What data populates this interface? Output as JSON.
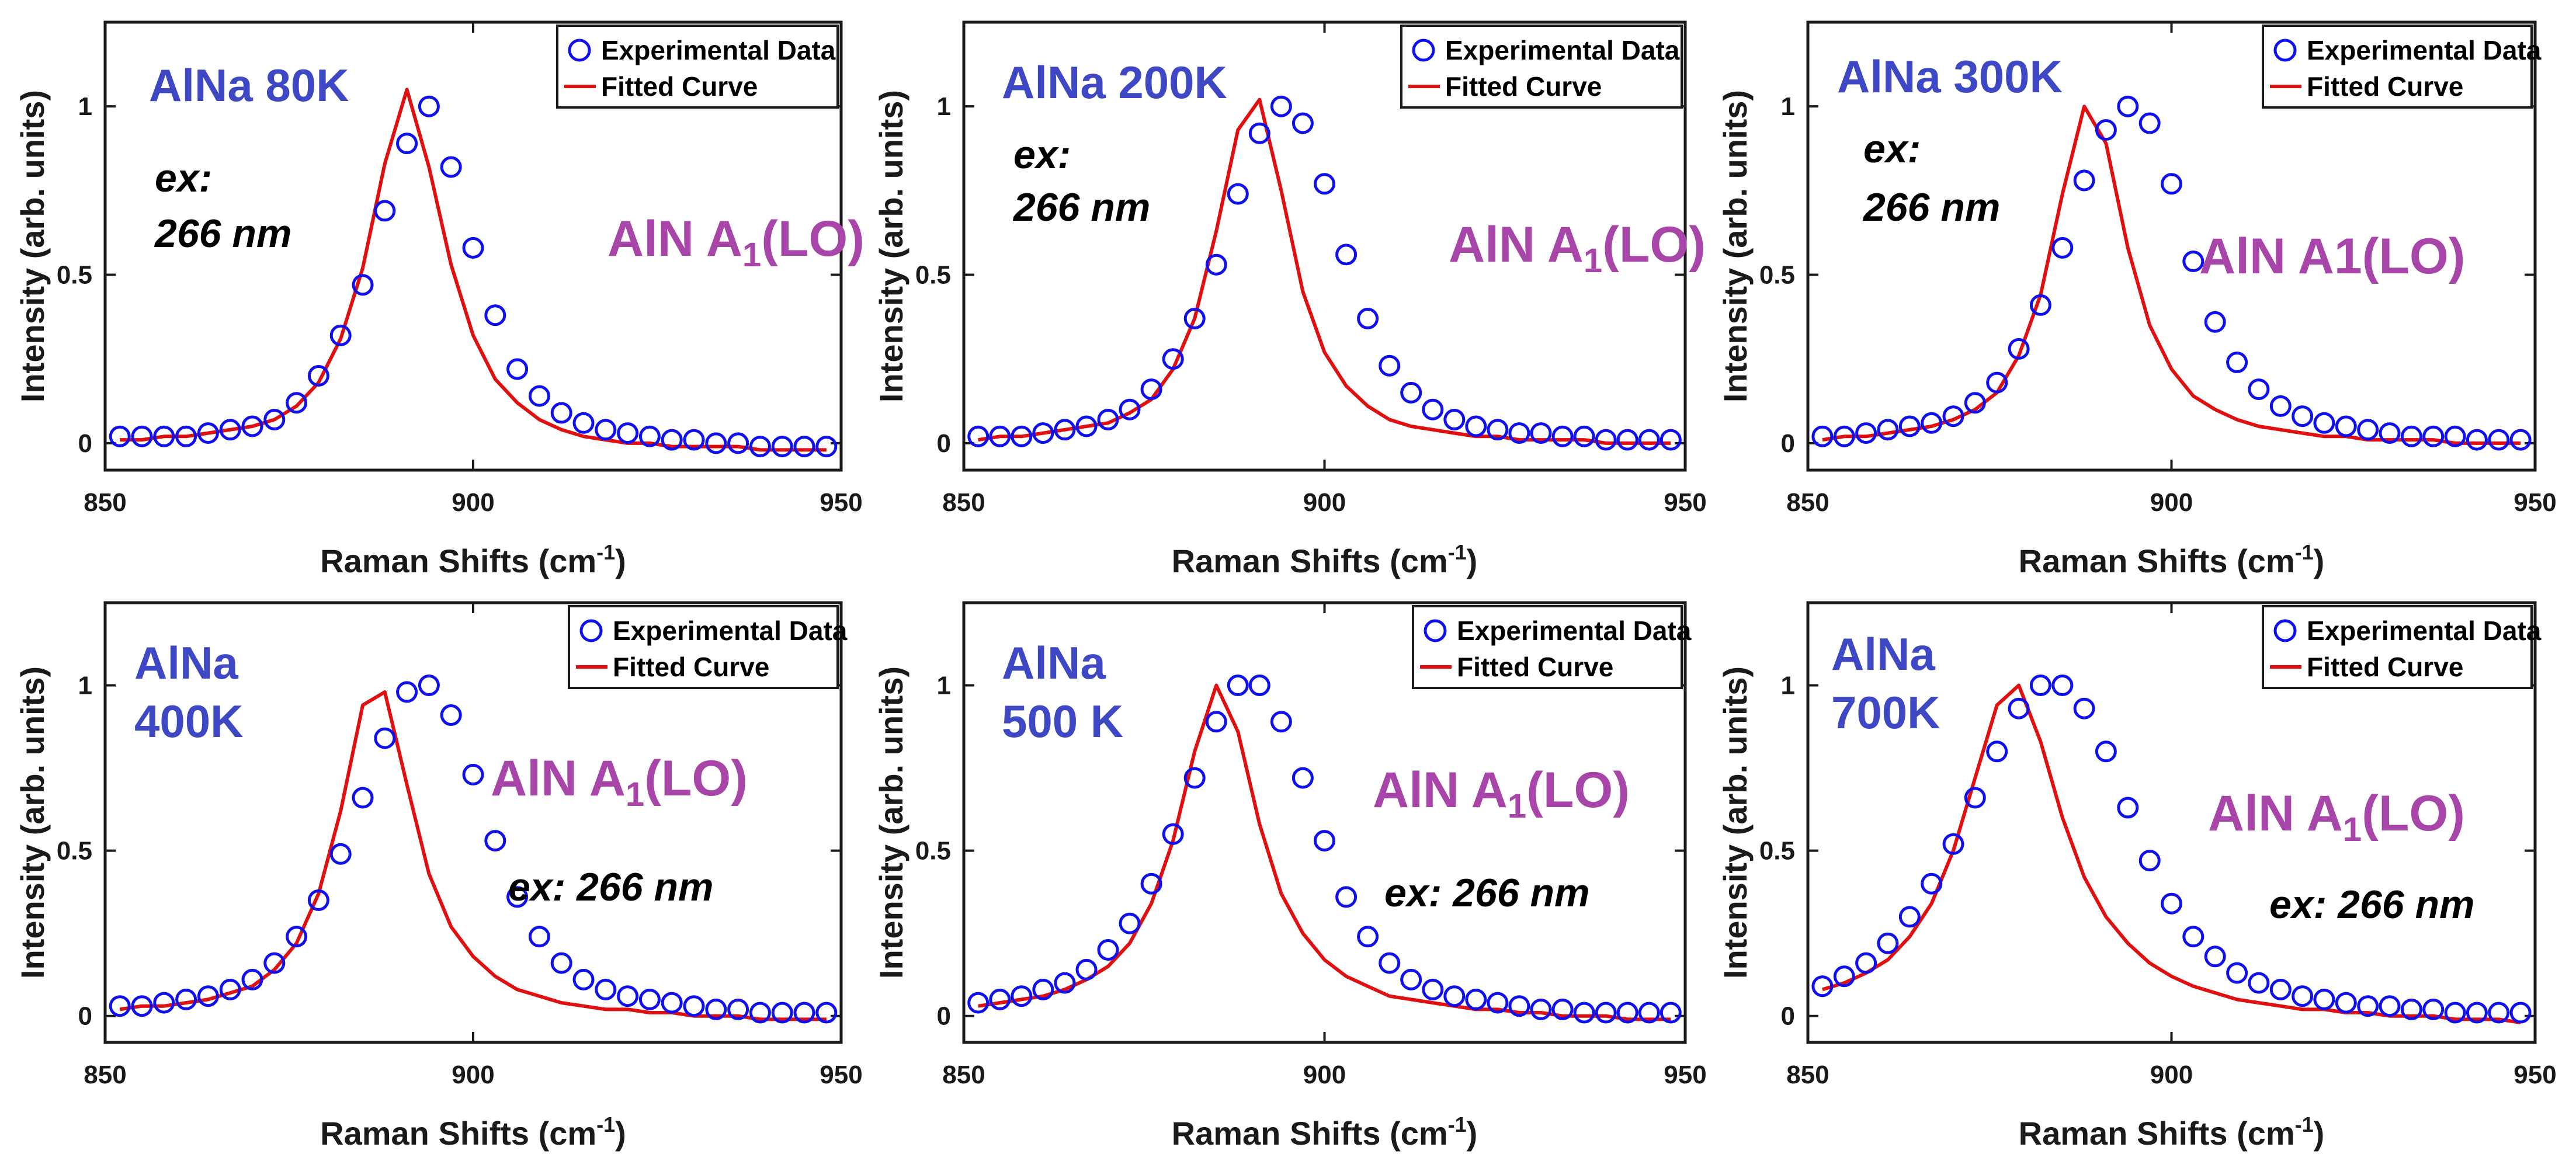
{
  "colors": {
    "marker": "#1010ee",
    "fit": "#e01010",
    "sample_label": "#3f48c4",
    "peak_label": "#a845a8",
    "axis": "#1a1a1a"
  },
  "chart_data": [
    {
      "type": "scatter",
      "sample_lines": [
        "AlNa 80K"
      ],
      "peak_label": {
        "main": "AlN A",
        "sub": "1",
        "tail": "(LO)"
      },
      "excitation_lines": [
        "ex:",
        "266 nm"
      ],
      "legend": [
        "Experimental Data",
        "Fitted Curve"
      ],
      "xlabel": {
        "main": "Raman Shifts (cm",
        "sup": "-1",
        "tail": ")"
      },
      "ylabel": "Intensity (arb. units)",
      "xlim": [
        850,
        950
      ],
      "ylim": [
        -0.08,
        1.25
      ],
      "xticks": [
        850,
        900,
        950
      ],
      "yticks": [
        0,
        0.5,
        1
      ],
      "peak_center": 891.5,
      "peak_gamma": 6.5,
      "x": [
        852,
        855,
        858,
        861,
        864,
        867,
        870,
        873,
        876,
        879,
        882,
        885,
        888,
        891,
        894,
        897,
        900,
        903,
        906,
        909,
        912,
        915,
        918,
        921,
        924,
        927,
        930,
        933,
        936,
        939,
        942,
        945,
        948
      ],
      "y": [
        0.02,
        0.02,
        0.02,
        0.02,
        0.03,
        0.04,
        0.05,
        0.07,
        0.12,
        0.2,
        0.32,
        0.47,
        0.69,
        0.89,
        1.0,
        0.82,
        0.58,
        0.38,
        0.22,
        0.14,
        0.09,
        0.06,
        0.04,
        0.03,
        0.02,
        0.01,
        0.01,
        0.0,
        0.0,
        -0.01,
        -0.01,
        -0.01,
        -0.01
      ],
      "fit_y": [
        0.01,
        0.01,
        0.02,
        0.02,
        0.03,
        0.04,
        0.05,
        0.07,
        0.11,
        0.18,
        0.31,
        0.52,
        0.83,
        1.05,
        0.82,
        0.53,
        0.32,
        0.19,
        0.12,
        0.07,
        0.04,
        0.02,
        0.01,
        0.0,
        0.0,
        -0.01,
        -0.01,
        -0.01,
        -0.01,
        -0.02,
        -0.02,
        -0.02,
        -0.02
      ]
    },
    {
      "type": "scatter",
      "sample_lines": [
        "AlNa 200K"
      ],
      "peak_label": {
        "main": "AlN A",
        "sub": "1",
        "tail": "(LO)"
      },
      "excitation_lines": [
        "ex:",
        "266 nm"
      ],
      "legend": [
        "Experimental Data",
        "Fitted Curve"
      ],
      "xlabel": {
        "main": "Raman Shifts (cm",
        "sup": "-1",
        "tail": ")"
      },
      "ylabel": "Intensity (arb. units)",
      "xlim": [
        850,
        950
      ],
      "ylim": [
        -0.08,
        1.25
      ],
      "xticks": [
        850,
        900,
        950
      ],
      "yticks": [
        0,
        0.5,
        1
      ],
      "peak_center": 891,
      "peak_gamma": 6.0,
      "x": [
        852,
        855,
        858,
        861,
        864,
        867,
        870,
        873,
        876,
        879,
        882,
        885,
        888,
        891,
        894,
        897,
        900,
        903,
        906,
        909,
        912,
        915,
        918,
        921,
        924,
        927,
        930,
        933,
        936,
        939,
        942,
        945,
        948
      ],
      "y": [
        0.02,
        0.02,
        0.02,
        0.03,
        0.04,
        0.05,
        0.07,
        0.1,
        0.16,
        0.25,
        0.37,
        0.53,
        0.74,
        0.92,
        1.0,
        0.95,
        0.77,
        0.56,
        0.37,
        0.23,
        0.15,
        0.1,
        0.07,
        0.05,
        0.04,
        0.03,
        0.03,
        0.02,
        0.02,
        0.01,
        0.01,
        0.01,
        0.01
      ],
      "fit_y": [
        0.01,
        0.02,
        0.02,
        0.03,
        0.04,
        0.05,
        0.06,
        0.09,
        0.13,
        0.22,
        0.37,
        0.63,
        0.93,
        1.02,
        0.75,
        0.45,
        0.27,
        0.17,
        0.11,
        0.07,
        0.05,
        0.04,
        0.03,
        0.02,
        0.02,
        0.01,
        0.01,
        0.01,
        0.01,
        0.0,
        0.0,
        0.0,
        0.0
      ]
    },
    {
      "type": "scatter",
      "sample_lines": [
        "AlNa 300K"
      ],
      "peak_label": {
        "main": "AlN A1(LO)",
        "sub": "",
        "tail": ""
      },
      "excitation_lines": [
        "ex:",
        "266 nm"
      ],
      "legend": [
        "Experimental Data",
        "Fitted Curve"
      ],
      "xlabel": {
        "main": "Raman Shifts (cm",
        "sup": "-1",
        "tail": ")"
      },
      "ylabel": "Intensity (arb. units)",
      "xlim": [
        850,
        950
      ],
      "ylim": [
        -0.08,
        1.25
      ],
      "xticks": [
        850,
        900,
        950
      ],
      "yticks": [
        0,
        0.5,
        1
      ],
      "peak_center": 889,
      "peak_gamma": 7.0,
      "x": [
        852,
        855,
        858,
        861,
        864,
        867,
        870,
        873,
        876,
        879,
        882,
        885,
        888,
        891,
        894,
        897,
        900,
        903,
        906,
        909,
        912,
        915,
        918,
        921,
        924,
        927,
        930,
        933,
        936,
        939,
        942,
        945,
        948
      ],
      "y": [
        0.02,
        0.02,
        0.03,
        0.04,
        0.05,
        0.06,
        0.08,
        0.12,
        0.18,
        0.28,
        0.41,
        0.58,
        0.78,
        0.93,
        1.0,
        0.95,
        0.77,
        0.54,
        0.36,
        0.24,
        0.16,
        0.11,
        0.08,
        0.06,
        0.05,
        0.04,
        0.03,
        0.02,
        0.02,
        0.02,
        0.01,
        0.01,
        0.01
      ],
      "fit_y": [
        0.01,
        0.02,
        0.02,
        0.03,
        0.04,
        0.05,
        0.07,
        0.1,
        0.15,
        0.26,
        0.44,
        0.74,
        1.0,
        0.89,
        0.58,
        0.35,
        0.22,
        0.14,
        0.1,
        0.07,
        0.05,
        0.04,
        0.03,
        0.02,
        0.02,
        0.01,
        0.01,
        0.01,
        0.01,
        0.0,
        0.0,
        0.0,
        0.0
      ]
    },
    {
      "type": "scatter",
      "sample_lines": [
        "AlNa",
        "400K"
      ],
      "peak_label": {
        "main": "AlN A",
        "sub": "1",
        "tail": "(LO)"
      },
      "excitation_lines": [
        "ex: 266 nm"
      ],
      "legend": [
        "Experimental Data",
        "Fitted Curve"
      ],
      "xlabel": {
        "main": "Raman Shifts (cm",
        "sup": "-1",
        "tail": ")"
      },
      "ylabel": "Intensity (arb. units)",
      "xlim": [
        850,
        950
      ],
      "ylim": [
        -0.08,
        1.25
      ],
      "xticks": [
        850,
        900,
        950
      ],
      "yticks": [
        0,
        0.5,
        1
      ],
      "peak_center": 886.5,
      "peak_gamma": 7.5,
      "x": [
        852,
        855,
        858,
        861,
        864,
        867,
        870,
        873,
        876,
        879,
        882,
        885,
        888,
        891,
        894,
        897,
        900,
        903,
        906,
        909,
        912,
        915,
        918,
        921,
        924,
        927,
        930,
        933,
        936,
        939,
        942,
        945,
        948
      ],
      "y": [
        0.03,
        0.03,
        0.04,
        0.05,
        0.06,
        0.08,
        0.11,
        0.16,
        0.24,
        0.35,
        0.49,
        0.66,
        0.84,
        0.98,
        1.0,
        0.91,
        0.73,
        0.53,
        0.36,
        0.24,
        0.16,
        0.11,
        0.08,
        0.06,
        0.05,
        0.04,
        0.03,
        0.02,
        0.02,
        0.01,
        0.01,
        0.01,
        0.01
      ],
      "fit_y": [
        0.02,
        0.03,
        0.03,
        0.04,
        0.05,
        0.07,
        0.09,
        0.14,
        0.22,
        0.37,
        0.62,
        0.94,
        0.98,
        0.7,
        0.43,
        0.27,
        0.18,
        0.12,
        0.08,
        0.06,
        0.04,
        0.03,
        0.02,
        0.02,
        0.01,
        0.01,
        0.0,
        0.0,
        0.0,
        -0.01,
        -0.01,
        -0.01,
        -0.01
      ]
    },
    {
      "type": "scatter",
      "sample_lines": [
        "AlNa",
        "500 K"
      ],
      "peak_label": {
        "main": "AlN A",
        "sub": "1",
        "tail": "(LO)"
      },
      "excitation_lines": [
        "ex: 266 nm"
      ],
      "legend": [
        "Experimental Data",
        "Fitted Curve"
      ],
      "xlabel": {
        "main": "Raman Shifts (cm",
        "sup": "-1",
        "tail": ")"
      },
      "ylabel": "Intensity (arb. units)",
      "xlim": [
        850,
        950
      ],
      "ylim": [
        -0.08,
        1.25
      ],
      "xticks": [
        850,
        900,
        950
      ],
      "yticks": [
        0,
        0.5,
        1
      ],
      "peak_center": 883.5,
      "peak_gamma": 8.0,
      "x": [
        852,
        855,
        858,
        861,
        864,
        867,
        870,
        873,
        876,
        879,
        882,
        885,
        888,
        891,
        894,
        897,
        900,
        903,
        906,
        909,
        912,
        915,
        918,
        921,
        924,
        927,
        930,
        933,
        936,
        939,
        942,
        945,
        948
      ],
      "y": [
        0.04,
        0.05,
        0.06,
        0.08,
        0.1,
        0.14,
        0.2,
        0.28,
        0.4,
        0.55,
        0.72,
        0.89,
        1.0,
        1.0,
        0.89,
        0.72,
        0.53,
        0.36,
        0.24,
        0.16,
        0.11,
        0.08,
        0.06,
        0.05,
        0.04,
        0.03,
        0.02,
        0.02,
        0.01,
        0.01,
        0.01,
        0.01,
        0.01
      ],
      "fit_y": [
        0.03,
        0.04,
        0.05,
        0.06,
        0.08,
        0.11,
        0.15,
        0.22,
        0.34,
        0.53,
        0.8,
        1.0,
        0.86,
        0.58,
        0.37,
        0.25,
        0.17,
        0.12,
        0.09,
        0.06,
        0.05,
        0.04,
        0.03,
        0.02,
        0.02,
        0.01,
        0.01,
        0.0,
        0.0,
        0.0,
        -0.01,
        -0.01,
        -0.01
      ]
    },
    {
      "type": "scatter",
      "sample_lines": [
        "AlNa",
        "700K"
      ],
      "peak_label": {
        "main": "AlN A",
        "sub": "1",
        "tail": "(LO)"
      },
      "excitation_lines": [
        "ex: 266 nm"
      ],
      "legend": [
        "Experimental Data",
        "Fitted Curve"
      ],
      "xlabel": {
        "main": "Raman Shifts (cm",
        "sup": "-1",
        "tail": ")"
      },
      "ylabel": "Intensity (arb. units)",
      "xlim": [
        850,
        950
      ],
      "ylim": [
        -0.08,
        1.25
      ],
      "xticks": [
        850,
        900,
        950
      ],
      "yticks": [
        0,
        0.5,
        1
      ],
      "peak_center": 878.5,
      "peak_gamma": 9.0,
      "x": [
        852,
        855,
        858,
        861,
        864,
        867,
        870,
        873,
        876,
        879,
        882,
        885,
        888,
        891,
        894,
        897,
        900,
        903,
        906,
        909,
        912,
        915,
        918,
        921,
        924,
        927,
        930,
        933,
        936,
        939,
        942,
        945,
        948
      ],
      "y": [
        0.09,
        0.12,
        0.16,
        0.22,
        0.3,
        0.4,
        0.52,
        0.66,
        0.8,
        0.93,
        1.0,
        1.0,
        0.93,
        0.8,
        0.63,
        0.47,
        0.34,
        0.24,
        0.18,
        0.13,
        0.1,
        0.08,
        0.06,
        0.05,
        0.04,
        0.03,
        0.03,
        0.02,
        0.02,
        0.01,
        0.01,
        0.01,
        0.01
      ],
      "fit_y": [
        0.08,
        0.1,
        0.13,
        0.17,
        0.24,
        0.34,
        0.5,
        0.72,
        0.94,
        1.0,
        0.83,
        0.6,
        0.42,
        0.3,
        0.22,
        0.16,
        0.12,
        0.09,
        0.07,
        0.05,
        0.04,
        0.03,
        0.02,
        0.02,
        0.01,
        0.01,
        0.0,
        0.0,
        0.0,
        -0.01,
        -0.01,
        -0.01,
        -0.02
      ]
    }
  ]
}
